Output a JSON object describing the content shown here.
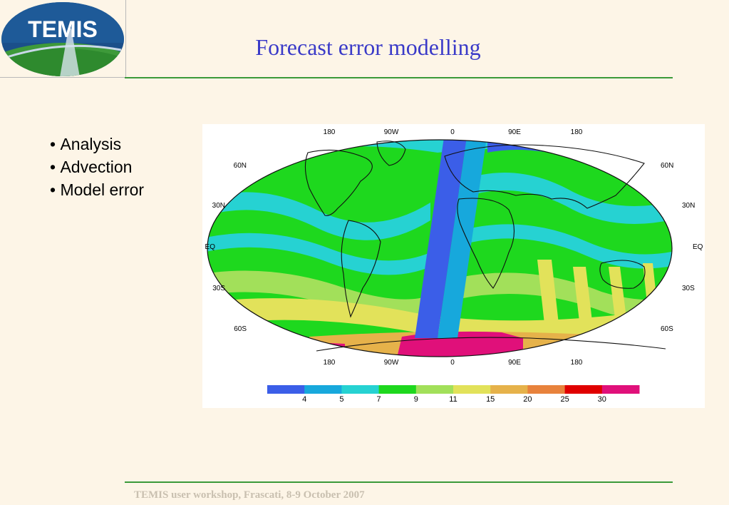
{
  "logo": {
    "text": "TEMIS"
  },
  "title": "Forecast error modelling",
  "bullets": [
    "Analysis",
    "Advection",
    "Model error"
  ],
  "figure": {
    "longitude_labels": [
      "180",
      "90W",
      "0",
      "90E",
      "180"
    ],
    "latitude_labels_left": [
      "60N",
      "30N",
      "EQ",
      "30S",
      "60S"
    ],
    "latitude_labels_right": [
      "60N",
      "30N",
      "EQ",
      "30S",
      "60S"
    ],
    "colorbar": {
      "colors": [
        "#3b5ee8",
        "#17a8dc",
        "#26d2d2",
        "#1ed81e",
        "#a2e05a",
        "#e2e25a",
        "#e6b24a",
        "#e8823c",
        "#e00000",
        "#e0107a"
      ],
      "tick_labels": [
        "4",
        "5",
        "7",
        "9",
        "11",
        "15",
        "20",
        "25",
        "30"
      ]
    }
  },
  "footer": "TEMIS user workshop, Frascati, 8-9 October 2007"
}
